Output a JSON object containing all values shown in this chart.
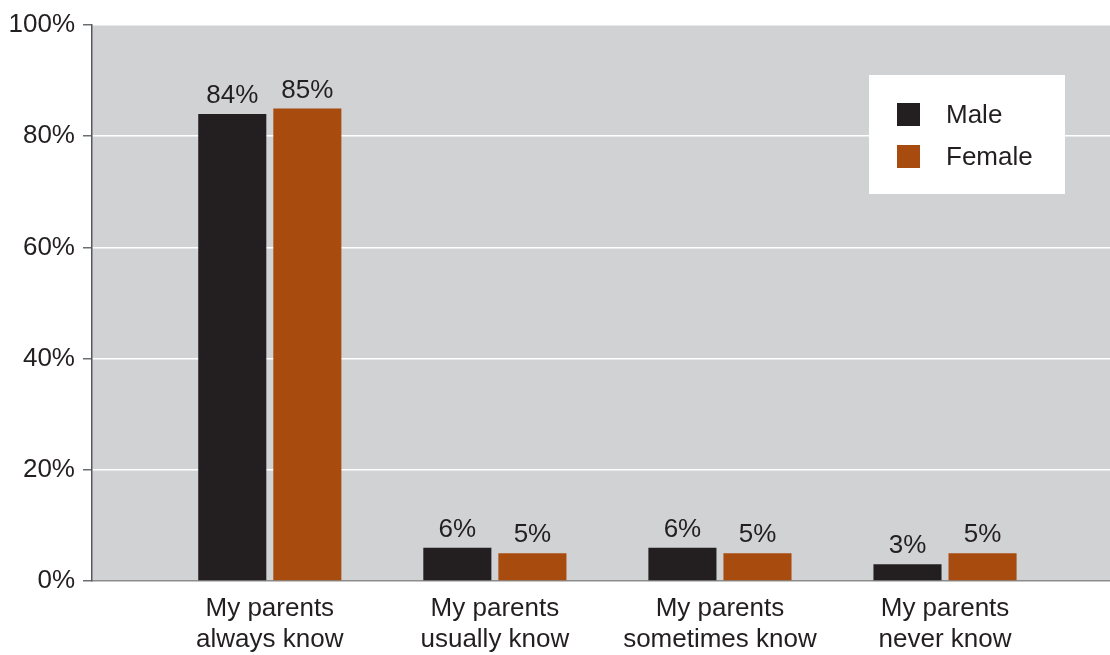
{
  "chart_data": {
    "type": "bar",
    "categories": [
      "My parents always know",
      "My parents usually know",
      "My parents sometimes know",
      "My parents never know"
    ],
    "series": [
      {
        "name": "Male",
        "color": "#231f20",
        "values": [
          84,
          6,
          6,
          3
        ],
        "value_labels": [
          "84%",
          "6%",
          "6%",
          "3%"
        ]
      },
      {
        "name": "Female",
        "color": "#a84b0e",
        "values": [
          85,
          5,
          5,
          5
        ],
        "value_labels": [
          "85%",
          "5%",
          "5%",
          "5%"
        ]
      }
    ],
    "ylim": [
      0,
      100
    ],
    "yticks": [
      {
        "value": 0,
        "label": "0%"
      },
      {
        "value": 20,
        "label": "20%"
      },
      {
        "value": 40,
        "label": "40%"
      },
      {
        "value": 60,
        "label": "60%"
      },
      {
        "value": 80,
        "label": "80%"
      },
      {
        "value": 100,
        "label": "100%"
      }
    ],
    "grid": "y",
    "legend": "top right"
  }
}
